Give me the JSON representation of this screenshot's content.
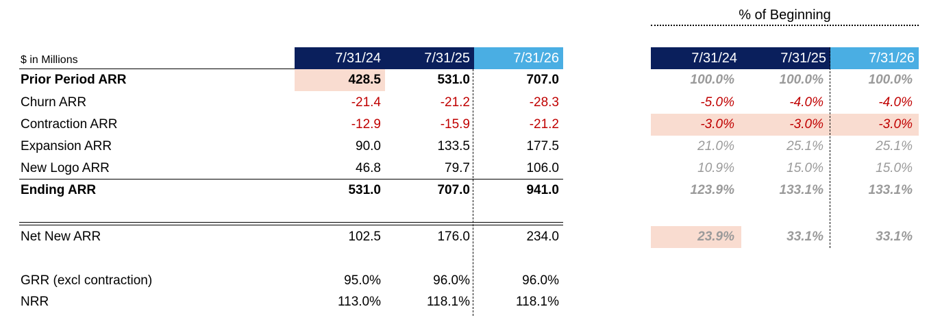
{
  "pct_section": {
    "title": "% of Beginning"
  },
  "header": {
    "units_label": "$ in Millions",
    "columns": [
      "7/31/24",
      "7/31/25",
      "7/31/26"
    ]
  },
  "rows": [
    {
      "label": "Prior Period ARR",
      "values": [
        "428.5",
        "531.0",
        "707.0"
      ],
      "pct": [
        "100.0%",
        "100.0%",
        "100.0%"
      ]
    },
    {
      "label": "Churn ARR",
      "values": [
        "-21.4",
        "-21.2",
        "-28.3"
      ],
      "pct": [
        "-5.0%",
        "-4.0%",
        "-4.0%"
      ]
    },
    {
      "label": "Contraction ARR",
      "values": [
        "-12.9",
        "-15.9",
        "-21.2"
      ],
      "pct": [
        "-3.0%",
        "-3.0%",
        "-3.0%"
      ]
    },
    {
      "label": "Expansion ARR",
      "values": [
        "90.0",
        "133.5",
        "177.5"
      ],
      "pct": [
        "21.0%",
        "25.1%",
        "25.1%"
      ]
    },
    {
      "label": "New Logo ARR",
      "values": [
        "46.8",
        "79.7",
        "106.0"
      ],
      "pct": [
        "10.9%",
        "15.0%",
        "15.0%"
      ]
    },
    {
      "label": "Ending ARR",
      "values": [
        "531.0",
        "707.0",
        "941.0"
      ],
      "pct": [
        "123.9%",
        "133.1%",
        "133.1%"
      ]
    }
  ],
  "net_new": {
    "label": "Net New ARR",
    "values": [
      "102.5",
      "176.0",
      "234.0"
    ],
    "pct": [
      "23.9%",
      "33.1%",
      "33.1%"
    ]
  },
  "retention": [
    {
      "label": "GRR (excl contraction)",
      "values": [
        "95.0%",
        "96.0%",
        "96.0%"
      ]
    },
    {
      "label": "NRR",
      "values": [
        "113.0%",
        "118.1%",
        "118.1%"
      ]
    }
  ],
  "colors": {
    "navy_header": "#0a1f5c",
    "light_blue_header": "#4aaee3",
    "negative_red": "#c00000",
    "highlight_peach": "#f9dcd0",
    "pct_gray": "#9a9a9a"
  }
}
